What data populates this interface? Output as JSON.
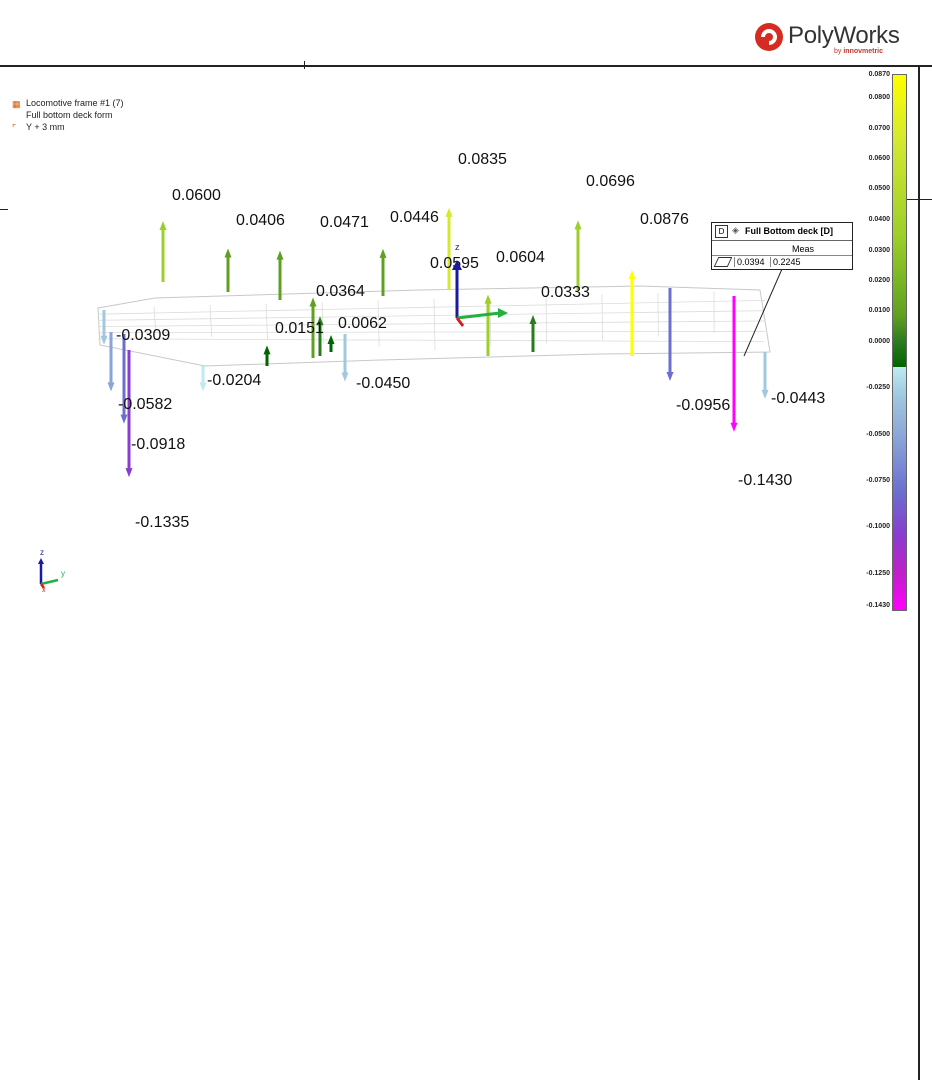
{
  "brand": {
    "name": "PolyWorks",
    "sub_prefix": "by ",
    "sub_name": "innovmetric"
  },
  "info": {
    "line1": "Locomotive frame #1 (7)",
    "line2": "Full bottom deck form",
    "line3": "Y + 3 mm"
  },
  "callout": {
    "tag": "D",
    "title": "Full Bottom deck [D]",
    "column": "Meas",
    "value1": "0.0394",
    "value2": "0.2245"
  },
  "color_scale": {
    "labels": [
      "0.0870",
      "0.0800",
      "0.0700",
      "0.0600",
      "0.0500",
      "0.0400",
      "0.0300",
      "0.0200",
      "0.0100",
      "0.0000",
      "-0.0250",
      "-0.0500",
      "-0.0750",
      "-0.1000",
      "-0.1250",
      "-0.1430"
    ]
  },
  "axes": {
    "z": "z",
    "y": "y",
    "x": "x"
  },
  "deviations": [
    {
      "label": "0.0600",
      "value": 0.06
    },
    {
      "label": "0.0406",
      "value": 0.0406
    },
    {
      "label": "0.0471",
      "value": 0.0471
    },
    {
      "label": "0.0446",
      "value": 0.0446
    },
    {
      "label": "0.0835",
      "value": 0.0835
    },
    {
      "label": "0.0595",
      "value": 0.0595
    },
    {
      "label": "0.0604",
      "value": 0.0604
    },
    {
      "label": "0.0696",
      "value": 0.0696
    },
    {
      "label": "0.0876",
      "value": 0.0876
    },
    {
      "label": "0.0364",
      "value": 0.0364
    },
    {
      "label": "0.0333",
      "value": 0.0333
    },
    {
      "label": "0.0151",
      "value": 0.0151
    },
    {
      "label": "0.0062",
      "value": 0.0062
    },
    {
      "label": "-0.0309",
      "value": -0.0309
    },
    {
      "label": "-0.0204",
      "value": -0.0204
    },
    {
      "label": "-0.0450",
      "value": -0.045
    },
    {
      "label": "-0.0582",
      "value": -0.0582
    },
    {
      "label": "-0.0918",
      "value": -0.0918
    },
    {
      "label": "-0.1335",
      "value": -0.1335
    },
    {
      "label": "-0.0956",
      "value": -0.0956
    },
    {
      "label": "-0.0443",
      "value": -0.0443
    },
    {
      "label": "-0.1430",
      "value": -0.143
    }
  ]
}
